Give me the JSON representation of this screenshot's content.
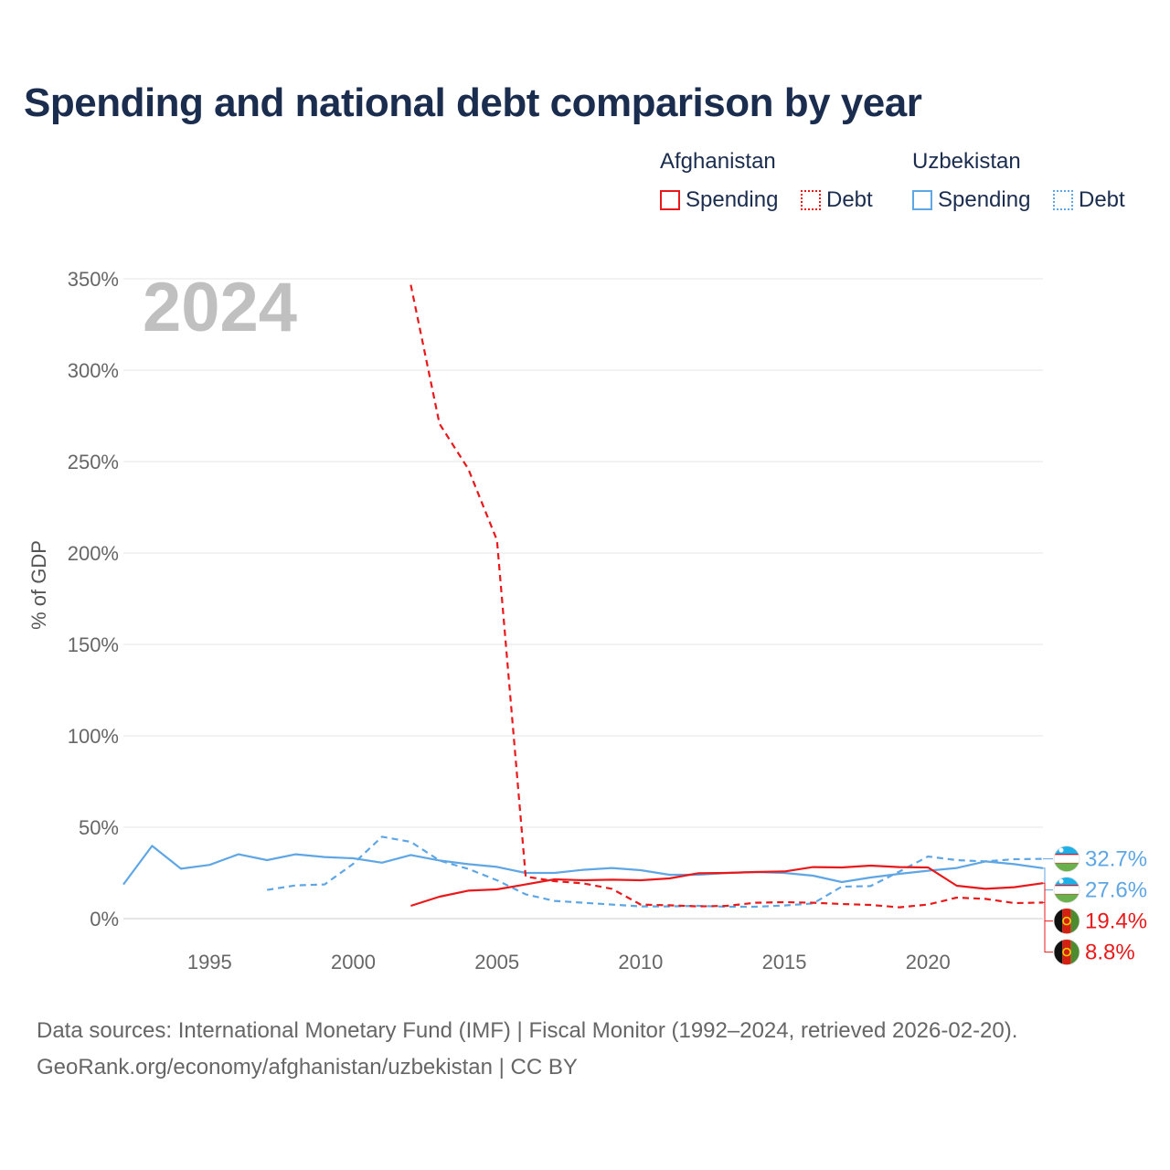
{
  "title": "Spending and national debt comparison by year",
  "legend": {
    "groups": [
      {
        "country": "Afghanistan",
        "color": "#e8191b",
        "items": [
          {
            "label": "Spending",
            "style": "solid"
          },
          {
            "label": "Debt",
            "style": "dotted"
          }
        ]
      },
      {
        "country": "Uzbekistan",
        "color": "#5fa6e4",
        "items": [
          {
            "label": "Spending",
            "style": "solid"
          },
          {
            "label": "Debt",
            "style": "dotted"
          }
        ]
      }
    ]
  },
  "chart_data": {
    "type": "line",
    "year_label": "2024",
    "ylabel": "% of GDP",
    "xlabel": "",
    "xlim": [
      1992,
      2024
    ],
    "ylim": [
      0,
      350
    ],
    "x_ticks": [
      1995,
      2000,
      2005,
      2010,
      2015,
      2020
    ],
    "y_ticks": [
      0,
      50,
      100,
      150,
      200,
      250,
      300,
      350
    ],
    "y_tick_labels": [
      "0%",
      "50%",
      "100%",
      "150%",
      "200%",
      "250%",
      "300%",
      "350%"
    ],
    "grid": true,
    "series": [
      {
        "name": "Uzbekistan Spending",
        "country": "Uzbekistan",
        "metric": "Spending",
        "color": "#5fa6e4",
        "dash": false,
        "points": [
          [
            1992,
            18.7
          ],
          [
            1993,
            39.8
          ],
          [
            1994,
            27.3
          ],
          [
            1995,
            29.4
          ],
          [
            1996,
            35.2
          ],
          [
            1997,
            32.0
          ],
          [
            1998,
            35.2
          ],
          [
            1999,
            33.7
          ],
          [
            2000,
            33.0
          ],
          [
            2001,
            30.6
          ],
          [
            2002,
            34.8
          ],
          [
            2003,
            31.8
          ],
          [
            2004,
            29.8
          ],
          [
            2005,
            28.3
          ],
          [
            2006,
            25.0
          ],
          [
            2007,
            25.0
          ],
          [
            2008,
            26.7
          ],
          [
            2009,
            27.7
          ],
          [
            2010,
            26.5
          ],
          [
            2011,
            24.0
          ],
          [
            2012,
            24.0
          ],
          [
            2013,
            25.0
          ],
          [
            2014,
            25.5
          ],
          [
            2015,
            25.0
          ],
          [
            2016,
            23.5
          ],
          [
            2017,
            20.0
          ],
          [
            2018,
            22.5
          ],
          [
            2019,
            24.5
          ],
          [
            2020,
            26.2
          ],
          [
            2021,
            27.7
          ],
          [
            2022,
            31.3
          ],
          [
            2023,
            29.8
          ],
          [
            2024,
            27.6
          ]
        ]
      },
      {
        "name": "Uzbekistan Debt",
        "country": "Uzbekistan",
        "metric": "Debt",
        "color": "#5fa6e4",
        "dash": true,
        "points": [
          [
            1997,
            15.7
          ],
          [
            1998,
            18.2
          ],
          [
            1999,
            18.7
          ],
          [
            2000,
            30.0
          ],
          [
            2001,
            44.8
          ],
          [
            2002,
            42.0
          ],
          [
            2003,
            31.8
          ],
          [
            2004,
            27.2
          ],
          [
            2005,
            21.0
          ],
          [
            2006,
            13.3
          ],
          [
            2007,
            9.7
          ],
          [
            2008,
            8.7
          ],
          [
            2009,
            7.7
          ],
          [
            2010,
            6.7
          ],
          [
            2011,
            6.7
          ],
          [
            2012,
            7.0
          ],
          [
            2013,
            6.5
          ],
          [
            2014,
            6.5
          ],
          [
            2015,
            7.2
          ],
          [
            2016,
            8.3
          ],
          [
            2017,
            17.5
          ],
          [
            2018,
            17.8
          ],
          [
            2019,
            25.7
          ],
          [
            2020,
            34.0
          ],
          [
            2021,
            32.0
          ],
          [
            2022,
            31.3
          ],
          [
            2023,
            32.5
          ],
          [
            2024,
            32.7
          ]
        ]
      },
      {
        "name": "Afghanistan Spending",
        "country": "Afghanistan",
        "metric": "Spending",
        "color": "#e8191b",
        "dash": false,
        "points": [
          [
            2002,
            7.0
          ],
          [
            2003,
            12.0
          ],
          [
            2004,
            15.3
          ],
          [
            2005,
            16.0
          ],
          [
            2006,
            18.7
          ],
          [
            2007,
            21.5
          ],
          [
            2008,
            21.0
          ],
          [
            2009,
            21.3
          ],
          [
            2010,
            21.0
          ],
          [
            2011,
            22.0
          ],
          [
            2012,
            24.8
          ],
          [
            2013,
            25.0
          ],
          [
            2014,
            25.5
          ],
          [
            2015,
            25.8
          ],
          [
            2016,
            28.2
          ],
          [
            2017,
            28.0
          ],
          [
            2018,
            29.0
          ],
          [
            2019,
            28.2
          ],
          [
            2020,
            28.0
          ],
          [
            2021,
            18.0
          ],
          [
            2022,
            16.3
          ],
          [
            2023,
            17.2
          ],
          [
            2024,
            19.4
          ]
        ]
      },
      {
        "name": "Afghanistan Debt",
        "country": "Afghanistan",
        "metric": "Debt",
        "color": "#e8191b",
        "dash": true,
        "points": [
          [
            2002,
            346.7
          ],
          [
            2003,
            270.7
          ],
          [
            2004,
            246.0
          ],
          [
            2005,
            207.0
          ],
          [
            2006,
            23.0
          ],
          [
            2007,
            20.5
          ],
          [
            2008,
            19.3
          ],
          [
            2009,
            16.3
          ],
          [
            2010,
            7.7
          ],
          [
            2011,
            7.3
          ],
          [
            2012,
            6.7
          ],
          [
            2013,
            7.0
          ],
          [
            2014,
            8.7
          ],
          [
            2015,
            9.0
          ],
          [
            2016,
            8.7
          ],
          [
            2017,
            8.0
          ],
          [
            2018,
            7.5
          ],
          [
            2019,
            6.2
          ],
          [
            2020,
            7.7
          ],
          [
            2021,
            11.5
          ],
          [
            2022,
            10.8
          ],
          [
            2023,
            8.5
          ],
          [
            2024,
            8.8
          ]
        ]
      }
    ],
    "end_labels": [
      {
        "text": "32.7%",
        "country": "Uzbekistan",
        "value": 32.7,
        "color": "#5fa6e4"
      },
      {
        "text": "27.6%",
        "country": "Uzbekistan",
        "value": 27.6,
        "color": "#5fa6e4"
      },
      {
        "text": "19.4%",
        "country": "Afghanistan",
        "value": 19.4,
        "color": "#e8191b"
      },
      {
        "text": "8.8%",
        "country": "Afghanistan",
        "value": 8.8,
        "color": "#e8191b"
      }
    ]
  },
  "sources": {
    "line1": "Data sources: International Monetary Fund (IMF) | Fiscal Monitor (1992–2024, retrieved 2026-02-20).",
    "line2": "GeoRank.org/economy/afghanistan/uzbekistan | CC BY"
  }
}
